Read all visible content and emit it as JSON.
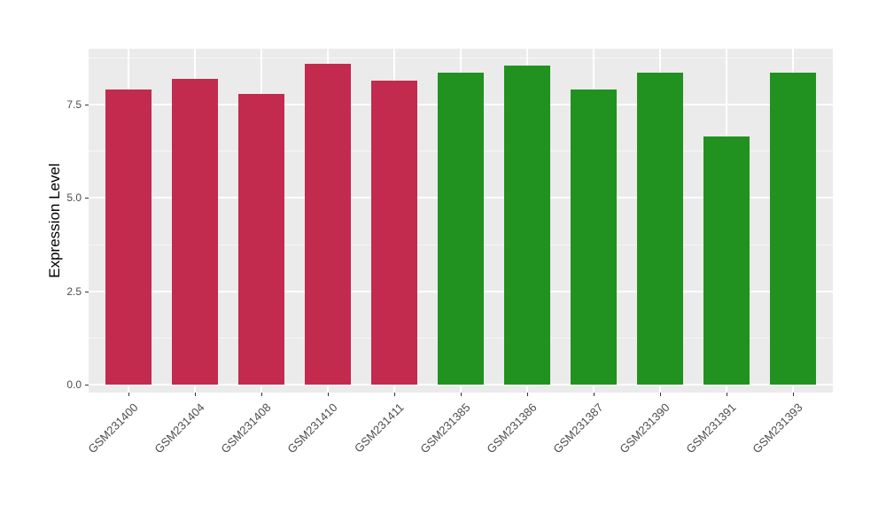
{
  "figure": {
    "background": "#FFFFFF",
    "panel_background": "#EBEBEB",
    "grid_color": "#FFFFFF",
    "axis_text_color": "#4D4D4D",
    "axis_title_color": "#000000",
    "tick_color": "#333333"
  },
  "chart_data": {
    "type": "bar",
    "title": "",
    "xlabel": "",
    "ylabel": "Expression Level",
    "categories": [
      "GSM231400",
      "GSM231404",
      "GSM231408",
      "GSM231410",
      "GSM231411",
      "GSM231385",
      "GSM231386",
      "GSM231387",
      "GSM231390",
      "GSM231391",
      "GSM231393"
    ],
    "values": [
      7.9,
      8.2,
      7.8,
      8.6,
      8.15,
      8.35,
      8.55,
      7.9,
      8.35,
      6.65,
      8.35
    ],
    "colors": [
      "#C22B4D",
      "#C22B4D",
      "#C22B4D",
      "#C22B4D",
      "#C22B4D",
      "#21921F",
      "#21921F",
      "#21921F",
      "#21921F",
      "#21921F",
      "#21921F"
    ],
    "group_colors": {
      "red_group": "#C22B4D",
      "green_group": "#21921F"
    },
    "y_ticks": [
      0,
      2.5,
      5,
      7.5
    ],
    "y_tick_labels": [
      "0.0",
      "2.5",
      "5.0",
      "7.5"
    ],
    "y_minor_ticks": [
      1.25,
      3.75,
      6.25,
      8.75
    ],
    "ylim": [
      0,
      9.0
    ],
    "bar_width_fraction": 0.7,
    "grid": true,
    "legend": "none"
  }
}
